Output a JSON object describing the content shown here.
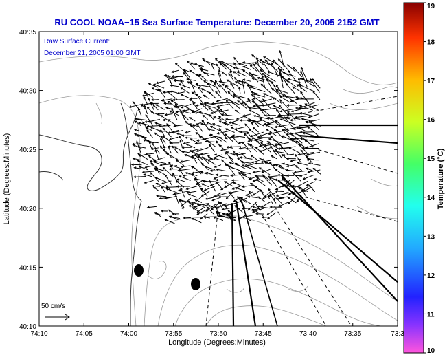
{
  "chart_data": {
    "type": "vector-map",
    "title": "RU COOL  NOAA−15  Sea Surface Temperature:  December 20, 2005 2152 GMT",
    "annotation_lines": [
      "Raw Surface Current:",
      "December 21, 2005 01:00 GMT"
    ],
    "xlabel": "Longitude (Degrees:Minutes)",
    "ylabel": "Latitude (Degrees:Minutes)",
    "x_ticks": [
      "74:10",
      "74:05",
      "74:00",
      "73:55",
      "73:50",
      "73:45",
      "73:40",
      "73:35",
      "73:3"
    ],
    "y_ticks": [
      "40:35",
      "40:30",
      "40:25",
      "40:20",
      "40:15",
      "40:10"
    ],
    "xlim_minutes_west": [
      10,
      30
    ],
    "ylim_minutes_north": [
      10,
      35
    ],
    "colorbar": {
      "label": "Temperature (°C)",
      "range": [
        10,
        19
      ],
      "ticks": [
        "19",
        "18",
        "17",
        "16",
        "15",
        "14",
        "13",
        "12",
        "11",
        "10"
      ],
      "colors": [
        "#ff55dd",
        "#8833ff",
        "#2222ff",
        "#22aaff",
        "#22ffee",
        "#44ff66",
        "#ccff22",
        "#ffbb00",
        "#ff3300",
        "#880000"
      ]
    },
    "scale_label": "50 cm/s",
    "colors": {
      "title": "#0000cc",
      "vectors": "#000000",
      "contours": "#909090",
      "coastline": "#333333"
    }
  }
}
